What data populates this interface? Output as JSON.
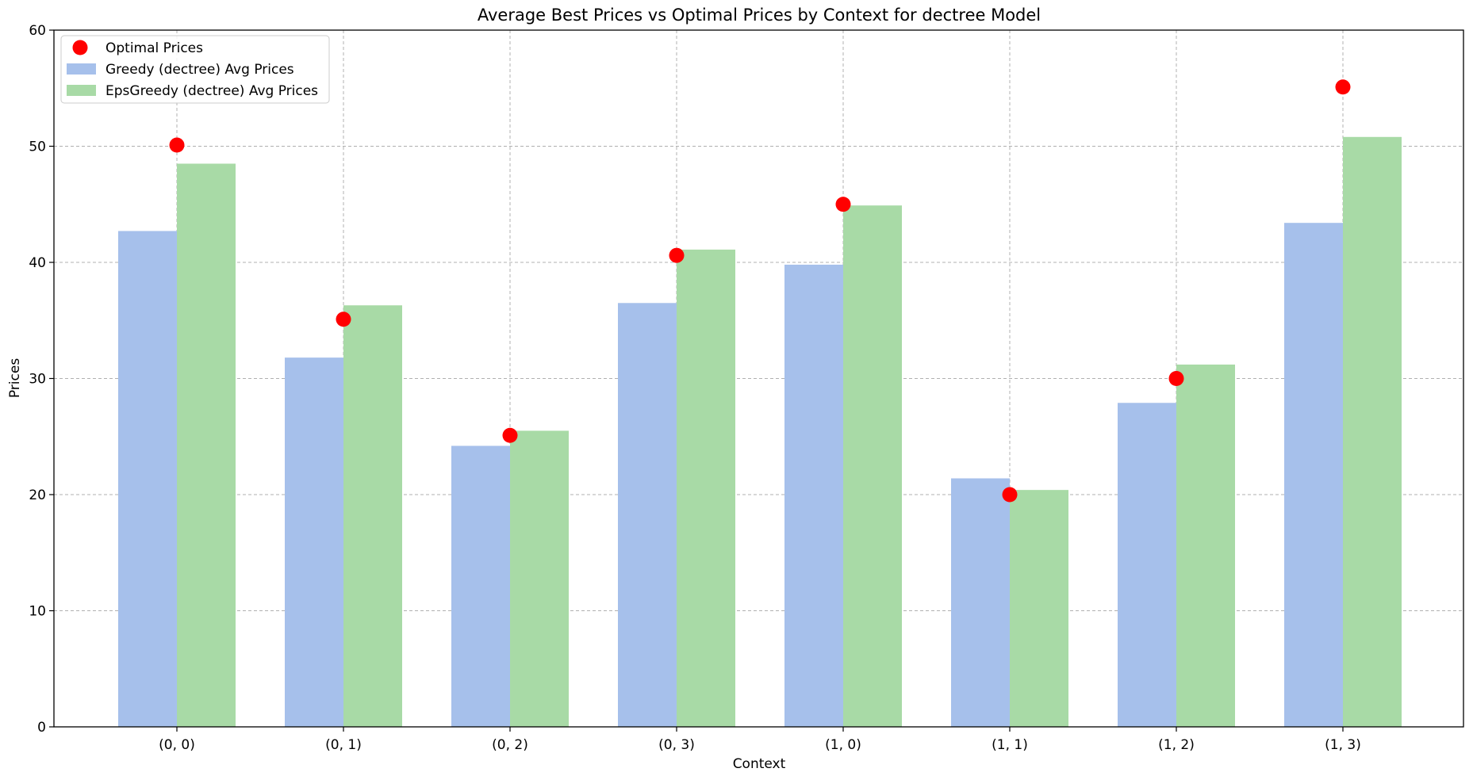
{
  "chart_data": {
    "type": "bar",
    "title": "Average Best Prices vs Optimal Prices by Context for dectree Model",
    "xlabel": "Context",
    "ylabel": "Prices",
    "categories": [
      "(0, 0)",
      "(0, 1)",
      "(0, 2)",
      "(0, 3)",
      "(1, 0)",
      "(1, 1)",
      "(1, 2)",
      "(1, 3)"
    ],
    "ylim": [
      0,
      60
    ],
    "yticks": [
      0,
      10,
      20,
      30,
      40,
      50,
      60
    ],
    "grid": true,
    "legend_position": "top-left",
    "series": [
      {
        "name": "Greedy (dectree) Avg Prices",
        "kind": "bar",
        "color": "#a6c0eb",
        "values": [
          42.7,
          31.8,
          24.2,
          36.5,
          39.8,
          21.4,
          27.9,
          43.4
        ]
      },
      {
        "name": "EpsGreedy (dectree) Avg Prices",
        "kind": "bar",
        "color": "#a8daa6",
        "values": [
          48.5,
          36.3,
          25.5,
          41.1,
          44.9,
          20.4,
          31.2,
          50.8
        ]
      },
      {
        "name": "Optimal Prices",
        "kind": "scatter",
        "color": "#ff0000",
        "values": [
          50.1,
          35.1,
          25.1,
          40.6,
          45.0,
          20.0,
          30.0,
          55.1
        ]
      }
    ]
  }
}
